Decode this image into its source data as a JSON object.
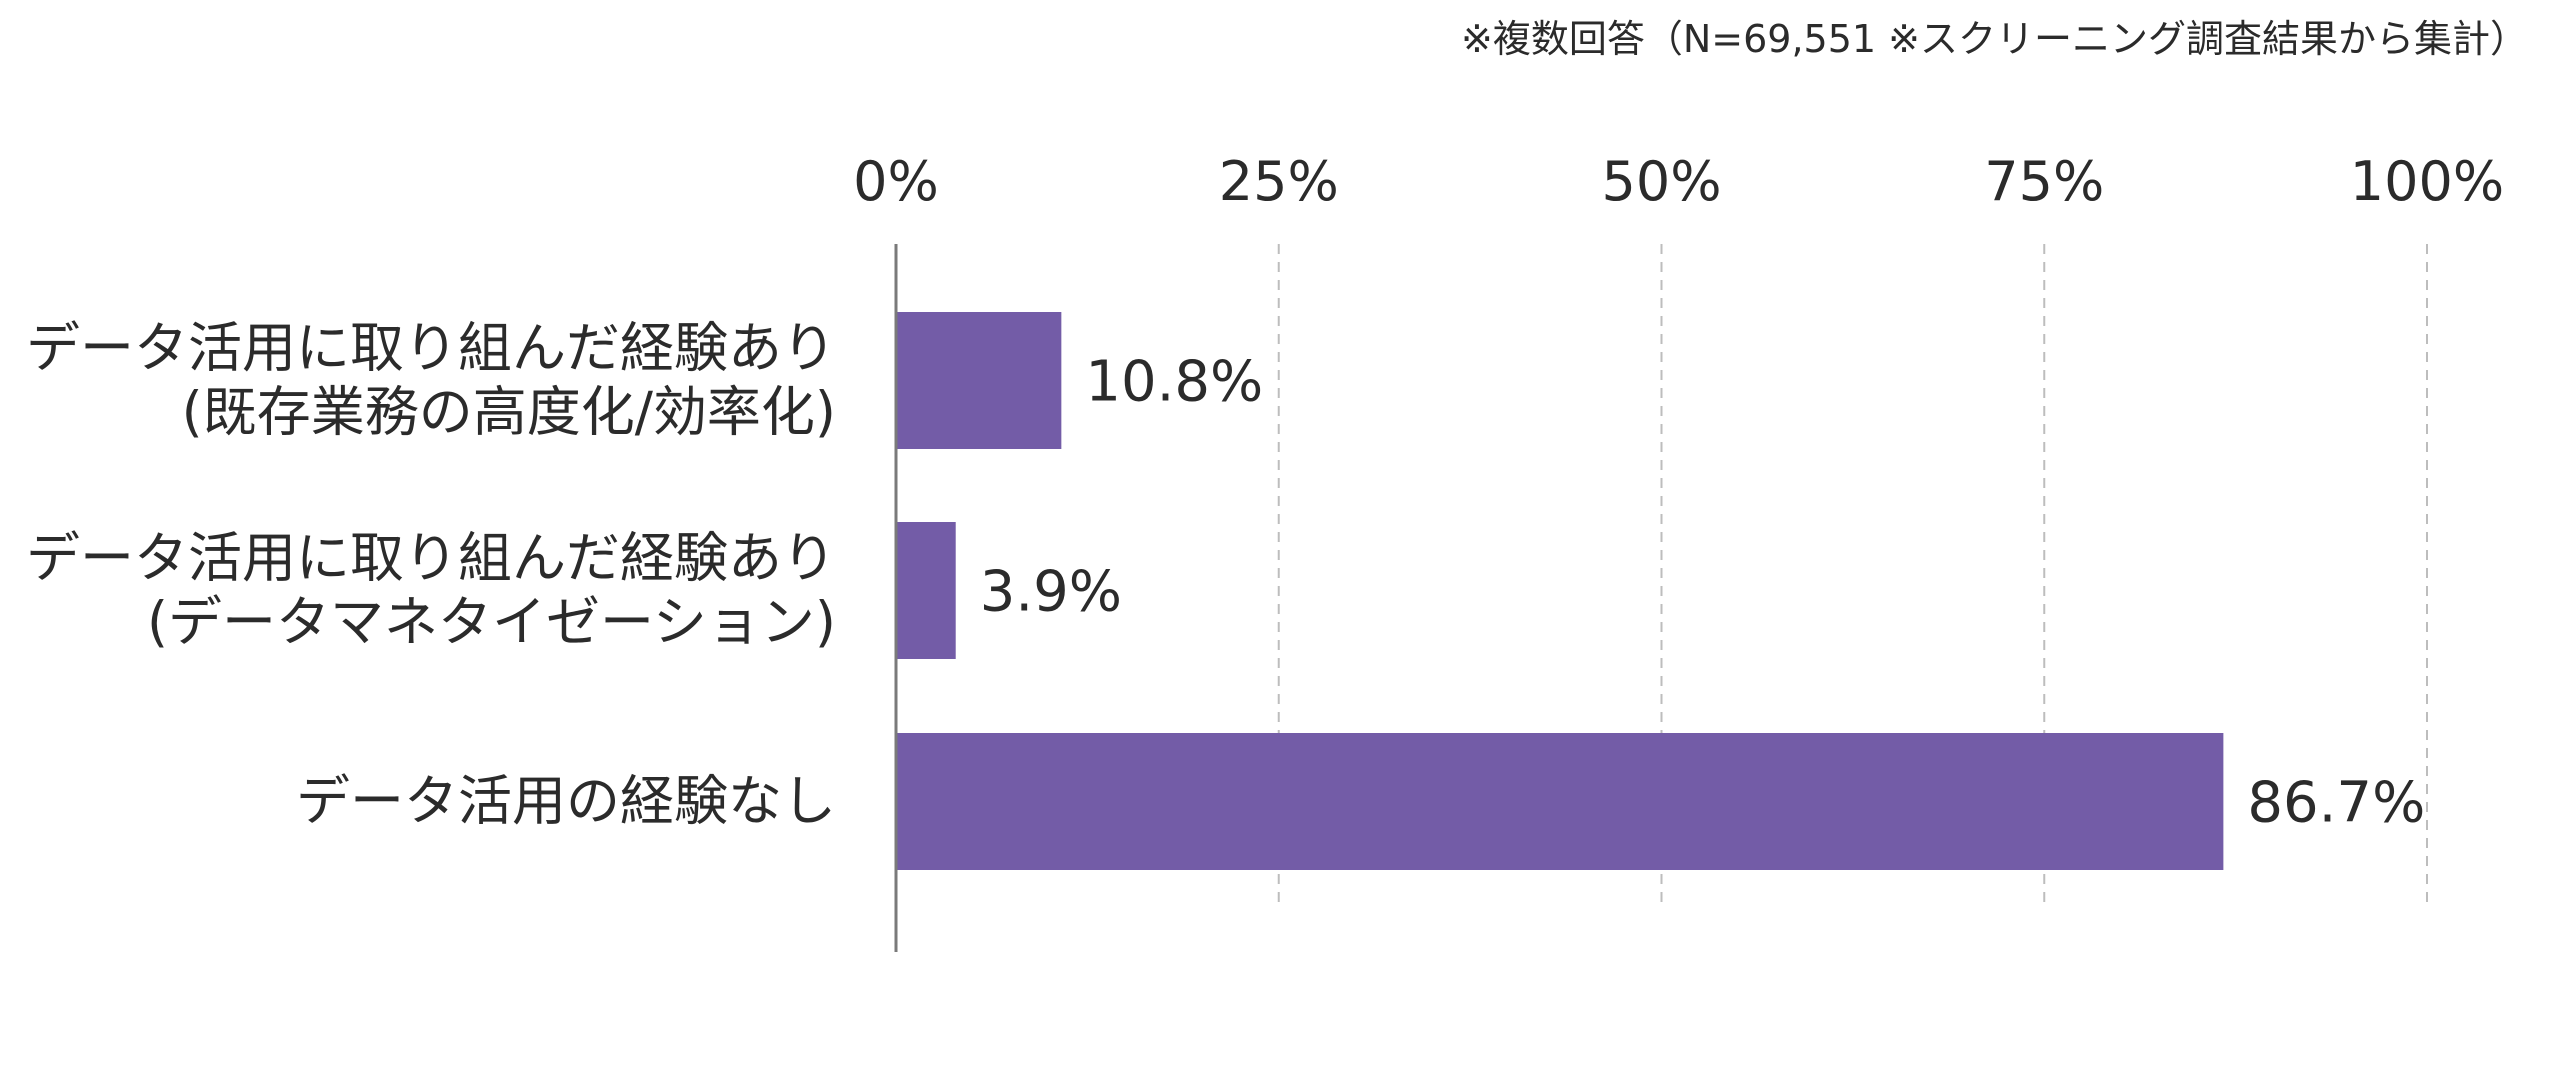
{
  "chart_data": {
    "type": "bar",
    "orientation": "horizontal",
    "note": "※複数回答（N=69,551 ※スクリーニング調査結果から集計）",
    "xlim": [
      0,
      100
    ],
    "xticks": [
      0,
      25,
      50,
      75,
      100
    ],
    "xtick_labels": [
      "0%",
      "25%",
      "50%",
      "75%",
      "100%"
    ],
    "xaxis_position": "top",
    "grid": "vertical dashed",
    "categories": [
      [
        "データ活用に取り組んだ経験あり",
        "(既存業務の高度化/効率化)"
      ],
      [
        "データ活用に取り組んだ経験あり",
        "(データマネタイゼーション)"
      ],
      [
        "データ活用の経験なし"
      ]
    ],
    "values": [
      10.8,
      3.9,
      86.7
    ],
    "value_labels": [
      "10.8%",
      "3.9%",
      "86.7%"
    ],
    "bar_color": "#735ca7"
  }
}
